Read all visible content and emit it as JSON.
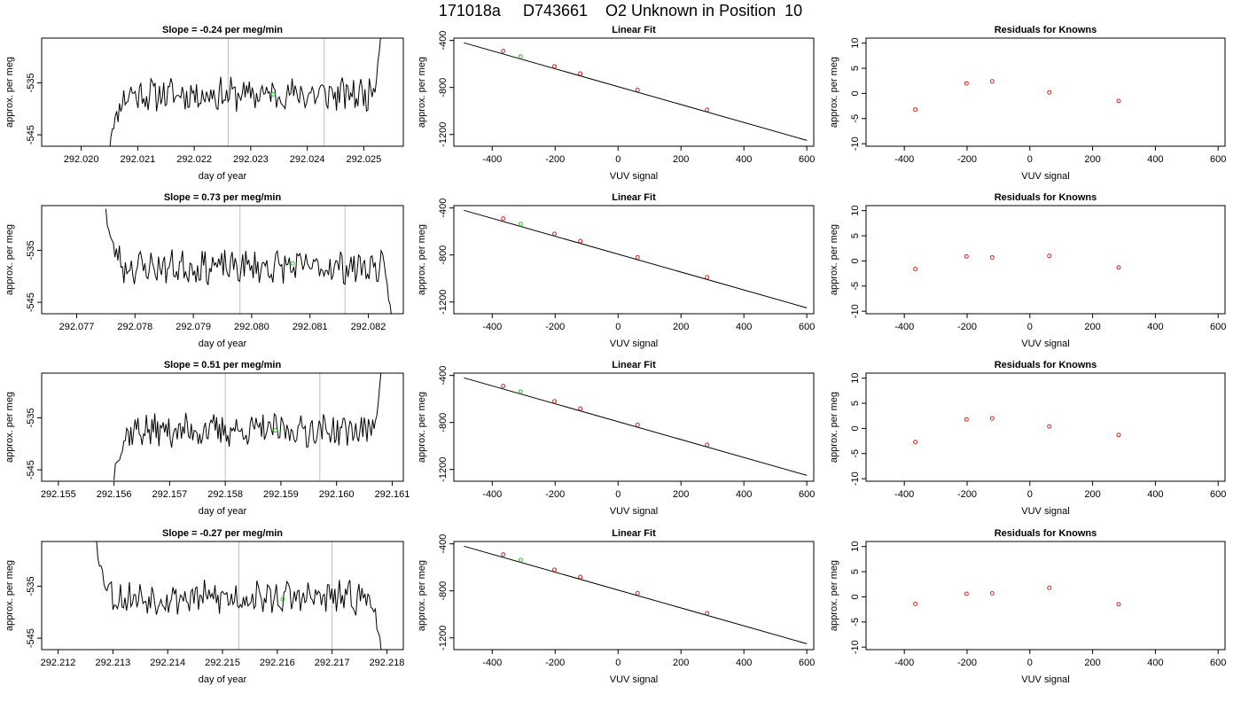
{
  "title": "171018a     D743661    O2 Unknown in Position  10",
  "colors": {
    "data_line": "#000000",
    "vline": "#bebebe",
    "known_point": "#dd2222",
    "unknown_point": "#22cc22"
  },
  "chart_data": [
    {
      "type": "line",
      "title": "Slope =  -0.24  per meg/min",
      "xlabel": "day of year",
      "ylabel": "approx. per meg",
      "xlim": [
        292.0193,
        292.0257
      ],
      "ylim": [
        -547.2,
        -526.4
      ],
      "xticks": [
        292.02,
        292.021,
        292.022,
        292.023,
        292.024,
        292.025
      ],
      "xtick_labels": [
        "292.020",
        "292.021",
        "292.022",
        "292.023",
        "292.024",
        "292.025"
      ],
      "yticks": [
        -545,
        -535
      ],
      "ytick_labels": [
        "-545",
        "-535"
      ],
      "vlines": [
        292.0226,
        292.0243
      ],
      "series_range": [
        292.0205,
        292.0253
      ],
      "base": -537.2,
      "noise_seed": 11,
      "rise_start": -548.5,
      "end_value": -526,
      "unknown_point": [
        292.0234,
        -537.2
      ]
    },
    {
      "type": "scatter",
      "title": "Linear Fit",
      "xlabel": "VUV signal",
      "ylabel": "approx. per meg",
      "xlim": [
        -522,
        622
      ],
      "ylim": [
        -1300,
        -380
      ],
      "xticks": [
        -400,
        -200,
        0,
        200,
        400,
        600
      ],
      "xtick_labels": [
        "-400",
        "-200",
        "0",
        "200",
        "400",
        "600"
      ],
      "yticks": [
        -1200,
        -800,
        -400
      ],
      "ytick_labels": [
        "-1200",
        "-800",
        "-400"
      ],
      "fit_line": [
        [
          -490,
          -420
        ],
        [
          600,
          -1250
        ]
      ],
      "knowns": [
        [
          -365,
          -490
        ],
        [
          -202,
          -620
        ],
        [
          -120,
          -682
        ],
        [
          62,
          -820
        ],
        [
          283,
          -990
        ]
      ],
      "unknown": [
        [
          -310,
          -537
        ]
      ]
    },
    {
      "type": "scatter",
      "title": "Residuals for Knowns",
      "xlabel": "VUV signal",
      "ylabel": "approx. per meg",
      "xlim": [
        -522,
        622
      ],
      "ylim": [
        -10.5,
        11
      ],
      "xticks": [
        -400,
        -200,
        0,
        200,
        400,
        600
      ],
      "xtick_labels": [
        "-400",
        "-200",
        "0",
        "200",
        "400",
        "600"
      ],
      "yticks": [
        -10,
        -5,
        0,
        5,
        10
      ],
      "ytick_labels": [
        "-10",
        "-5",
        "0",
        "5",
        "10"
      ],
      "knowns": [
        [
          -365,
          -3.2
        ],
        [
          -202,
          2.0
        ],
        [
          -120,
          2.4
        ],
        [
          62,
          0.2
        ],
        [
          283,
          -1.5
        ]
      ]
    },
    {
      "type": "line",
      "title": "Slope =  0.73  per meg/min",
      "xlabel": "day of year",
      "ylabel": "approx. per meg",
      "xlim": [
        292.0764,
        292.0826
      ],
      "ylim": [
        -547.2,
        -526.4
      ],
      "xticks": [
        292.077,
        292.078,
        292.079,
        292.08,
        292.081,
        292.082
      ],
      "xtick_labels": [
        "292.077",
        "292.078",
        "292.079",
        "292.080",
        "292.081",
        "292.082"
      ],
      "yticks": [
        -545,
        -535
      ],
      "ytick_labels": [
        "-545",
        "-535"
      ],
      "vlines": [
        292.0798,
        292.0816
      ],
      "series_range": [
        292.0775,
        292.0824
      ],
      "base": -538.2,
      "noise_seed": 23,
      "fall_start": -527,
      "end_value": -548,
      "unknown_point": [
        292.0807,
        -537.5
      ]
    },
    {
      "type": "scatter",
      "title": "Linear Fit",
      "xlabel": "VUV signal",
      "ylabel": "approx. per meg",
      "xlim": [
        -522,
        622
      ],
      "ylim": [
        -1300,
        -380
      ],
      "xticks": [
        -400,
        -200,
        0,
        200,
        400,
        600
      ],
      "xtick_labels": [
        "-400",
        "-200",
        "0",
        "200",
        "400",
        "600"
      ],
      "yticks": [
        -1200,
        -800,
        -400
      ],
      "ytick_labels": [
        "-1200",
        "-800",
        "-400"
      ],
      "fit_line": [
        [
          -490,
          -420
        ],
        [
          600,
          -1250
        ]
      ],
      "knowns": [
        [
          -365,
          -490
        ],
        [
          -202,
          -620
        ],
        [
          -120,
          -682
        ],
        [
          62,
          -820
        ],
        [
          283,
          -990
        ]
      ],
      "unknown": [
        [
          -310,
          -537
        ]
      ]
    },
    {
      "type": "scatter",
      "title": "Residuals for Knowns",
      "xlabel": "VUV signal",
      "ylabel": "approx. per meg",
      "xlim": [
        -522,
        622
      ],
      "ylim": [
        -10.5,
        11
      ],
      "xticks": [
        -400,
        -200,
        0,
        200,
        400,
        600
      ],
      "xtick_labels": [
        "-400",
        "-200",
        "0",
        "200",
        "400",
        "600"
      ],
      "yticks": [
        -10,
        -5,
        0,
        5,
        10
      ],
      "ytick_labels": [
        "-10",
        "-5",
        "0",
        "5",
        "10"
      ],
      "knowns": [
        [
          -365,
          -1.6
        ],
        [
          -202,
          0.9
        ],
        [
          -120,
          0.7
        ],
        [
          62,
          1.0
        ],
        [
          283,
          -1.3
        ]
      ]
    },
    {
      "type": "line",
      "title": "Slope =  0.51  per meg/min",
      "xlabel": "day of year",
      "ylabel": "approx. per meg",
      "xlim": [
        292.1547,
        292.1612
      ],
      "ylim": [
        -547.2,
        -526.4
      ],
      "xticks": [
        292.155,
        292.156,
        292.157,
        292.158,
        292.159,
        292.16,
        292.161
      ],
      "xtick_labels": [
        "292.155",
        "292.156",
        "292.157",
        "292.158",
        "292.159",
        "292.160",
        "292.161"
      ],
      "yticks": [
        -545,
        -535
      ],
      "ytick_labels": [
        "-545",
        "-535"
      ],
      "vlines": [
        292.158,
        292.1597
      ],
      "series_range": [
        292.156,
        292.1608
      ],
      "base": -537.4,
      "noise_seed": 37,
      "rise_start": -547,
      "end_value": -526,
      "unknown_point": [
        292.1589,
        -537.4
      ]
    },
    {
      "type": "scatter",
      "title": "Linear Fit",
      "xlabel": "VUV signal",
      "ylabel": "approx. per meg",
      "xlim": [
        -522,
        622
      ],
      "ylim": [
        -1300,
        -380
      ],
      "xticks": [
        -400,
        -200,
        0,
        200,
        400,
        600
      ],
      "xtick_labels": [
        "-400",
        "-200",
        "0",
        "200",
        "400",
        "600"
      ],
      "yticks": [
        -1200,
        -800,
        -400
      ],
      "ytick_labels": [
        "-1200",
        "-800",
        "-400"
      ],
      "fit_line": [
        [
          -490,
          -420
        ],
        [
          600,
          -1250
        ]
      ],
      "knowns": [
        [
          -365,
          -490
        ],
        [
          -202,
          -620
        ],
        [
          -120,
          -682
        ],
        [
          62,
          -820
        ],
        [
          283,
          -990
        ]
      ],
      "unknown": [
        [
          -310,
          -537
        ]
      ]
    },
    {
      "type": "scatter",
      "title": "Residuals for Knowns",
      "xlabel": "VUV signal",
      "ylabel": "approx. per meg",
      "xlim": [
        -522,
        622
      ],
      "ylim": [
        -10.5,
        11
      ],
      "xticks": [
        -400,
        -200,
        0,
        200,
        400,
        600
      ],
      "xtick_labels": [
        "-400",
        "-200",
        "0",
        "200",
        "400",
        "600"
      ],
      "yticks": [
        -10,
        -5,
        0,
        5,
        10
      ],
      "ytick_labels": [
        "-10",
        "-5",
        "0",
        "5",
        "10"
      ],
      "knowns": [
        [
          -365,
          -2.7
        ],
        [
          -202,
          1.8
        ],
        [
          -120,
          2.0
        ],
        [
          62,
          0.4
        ],
        [
          283,
          -1.3
        ]
      ]
    },
    {
      "type": "line",
      "title": "Slope =  -0.27  per meg/min",
      "xlabel": "day of year",
      "ylabel": "approx. per meg",
      "xlim": [
        292.2117,
        292.2183
      ],
      "ylim": [
        -547.2,
        -526.4
      ],
      "xticks": [
        292.212,
        292.213,
        292.214,
        292.215,
        292.216,
        292.217,
        292.218
      ],
      "xtick_labels": [
        "292.212",
        "292.213",
        "292.214",
        "292.215",
        "292.216",
        "292.217",
        "292.218"
      ],
      "yticks": [
        -545,
        -535
      ],
      "ytick_labels": [
        "-545",
        "-535"
      ],
      "vlines": [
        292.2153,
        292.217
      ],
      "series_range": [
        292.2127,
        292.2179
      ],
      "base": -537.2,
      "noise_seed": 53,
      "fall_start": -526,
      "end_value": -548,
      "unknown_point": [
        292.2161,
        -537.5
      ]
    },
    {
      "type": "scatter",
      "title": "Linear Fit",
      "xlabel": "VUV signal",
      "ylabel": "approx. per meg",
      "xlim": [
        -522,
        622
      ],
      "ylim": [
        -1300,
        -380
      ],
      "xticks": [
        -400,
        -200,
        0,
        200,
        400,
        600
      ],
      "xtick_labels": [
        "-400",
        "-200",
        "0",
        "200",
        "400",
        "600"
      ],
      "yticks": [
        -1200,
        -800,
        -400
      ],
      "ytick_labels": [
        "-1200",
        "-800",
        "-400"
      ],
      "fit_line": [
        [
          -490,
          -420
        ],
        [
          600,
          -1250
        ]
      ],
      "knowns": [
        [
          -365,
          -490
        ],
        [
          -202,
          -620
        ],
        [
          -120,
          -682
        ],
        [
          62,
          -820
        ],
        [
          283,
          -990
        ]
      ],
      "unknown": [
        [
          -310,
          -537
        ]
      ]
    },
    {
      "type": "scatter",
      "title": "Residuals for Knowns",
      "xlabel": "VUV signal",
      "ylabel": "approx. per meg",
      "xlim": [
        -522,
        622
      ],
      "ylim": [
        -10.5,
        11
      ],
      "xticks": [
        -400,
        -200,
        0,
        200,
        400,
        600
      ],
      "xtick_labels": [
        "-400",
        "-200",
        "0",
        "200",
        "400",
        "600"
      ],
      "yticks": [
        -10,
        -5,
        0,
        5,
        10
      ],
      "ytick_labels": [
        "-10",
        "-5",
        "0",
        "5",
        "10"
      ],
      "knowns": [
        [
          -365,
          -1.4
        ],
        [
          -202,
          0.6
        ],
        [
          -120,
          0.7
        ],
        [
          62,
          1.8
        ],
        [
          283,
          -1.5
        ]
      ]
    }
  ]
}
